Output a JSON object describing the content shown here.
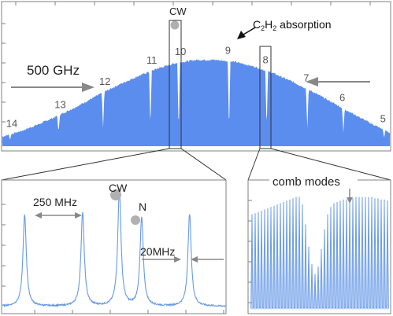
{
  "chart_data": [
    {
      "type": "area",
      "panel": "overview spectrum",
      "title": "",
      "xlabel": "",
      "ylabel": "",
      "grid": false,
      "legend": "none",
      "envelope": {
        "x": [
          0,
          0.05,
          0.1,
          0.15,
          0.2,
          0.25,
          0.3,
          0.35,
          0.4,
          0.45,
          0.5,
          0.55,
          0.6,
          0.65,
          0.7,
          0.75,
          0.8,
          0.85,
          0.9,
          0.95,
          1.0
        ],
        "y": [
          0.08,
          0.14,
          0.22,
          0.31,
          0.41,
          0.52,
          0.62,
          0.71,
          0.79,
          0.85,
          0.88,
          0.88,
          0.86,
          0.81,
          0.74,
          0.65,
          0.55,
          0.44,
          0.33,
          0.22,
          0.12
        ]
      },
      "absorption_lines": [
        {
          "label": "14",
          "x": 0.02,
          "depth": 0.5
        },
        {
          "label": "13",
          "x": 0.145,
          "depth": 0.62
        },
        {
          "label": "12",
          "x": 0.26,
          "depth": 0.7
        },
        {
          "label": "11",
          "x": 0.382,
          "depth": 0.78
        },
        {
          "label": "10",
          "x": 0.455,
          "depth": 0.86
        },
        {
          "label": "9",
          "x": 0.585,
          "depth": 0.85
        },
        {
          "label": "8",
          "x": 0.682,
          "depth": 0.8
        },
        {
          "label": "7",
          "x": 0.787,
          "depth": 0.74
        },
        {
          "label": "6",
          "x": 0.88,
          "depth": 0.68
        },
        {
          "label": "5",
          "x": 0.985,
          "depth": 0.55
        }
      ],
      "cw_marker": {
        "label": "CW",
        "x": 0.455
      },
      "annotations": {
        "span": "500 GHz",
        "molecule_prefix": "C",
        "molecule_sub1": "2",
        "molecule_mid": "H",
        "molecule_sub2": "2",
        "molecule_suffix": " absorption"
      },
      "color": "#5b8def"
    },
    {
      "type": "line",
      "panel": "zoom near CW laser",
      "title": "",
      "xlabel": "",
      "ylabel": "",
      "grid": false,
      "peaks": [
        {
          "x": 0.1,
          "height": 0.75
        },
        {
          "x": 0.36,
          "height": 0.76
        },
        {
          "x": 0.525,
          "height": 0.95,
          "label": "CW"
        },
        {
          "x": 0.625,
          "height": 0.72,
          "label": "N"
        },
        {
          "x": 0.84,
          "height": 0.75
        }
      ],
      "baseline": 0.04,
      "annotations": {
        "spacing": "250 MHz",
        "offset": "20MHz"
      },
      "color": "#6699e6"
    },
    {
      "type": "line",
      "panel": "comb modes near line 8",
      "title": "",
      "xlabel": "",
      "ylabel": "",
      "grid": false,
      "mode_count": 44,
      "mode_heights": [
        0.78,
        0.79,
        0.8,
        0.81,
        0.82,
        0.83,
        0.84,
        0.85,
        0.86,
        0.87,
        0.88,
        0.89,
        0.9,
        0.91,
        0.92,
        0.92,
        0.86,
        0.7,
        0.52,
        0.38,
        0.3,
        0.36,
        0.5,
        0.66,
        0.78,
        0.84,
        0.87,
        0.88,
        0.89,
        0.9,
        0.9,
        0.91,
        0.91,
        0.92,
        0.92,
        0.92,
        0.92,
        0.92,
        0.92,
        0.91,
        0.91,
        0.9,
        0.9,
        0.89
      ],
      "annotations": {
        "modes": "comb modes"
      },
      "color": "#6699e6"
    }
  ]
}
